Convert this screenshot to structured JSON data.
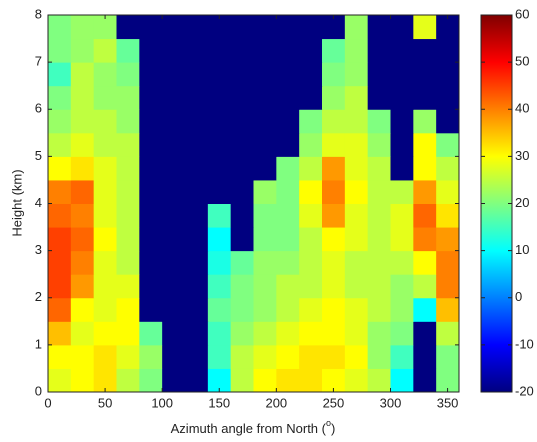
{
  "chart_data": {
    "type": "heatmap",
    "x": [
      10,
      30,
      50,
      70,
      90,
      110,
      130,
      150,
      170,
      190,
      210,
      230,
      250,
      270,
      290,
      310,
      330,
      350
    ],
    "y": [
      0.25,
      0.75,
      1.25,
      1.75,
      2.25,
      2.75,
      3.25,
      3.75,
      4.25,
      4.75,
      5.25,
      5.75,
      6.25,
      6.75,
      7.25,
      7.75
    ],
    "z": [
      [
        28,
        30,
        32,
        25,
        20,
        -20,
        -20,
        10,
        25,
        30,
        32,
        32,
        30,
        28,
        25,
        10,
        -20,
        20
      ],
      [
        30,
        30,
        32,
        28,
        22,
        -20,
        -20,
        15,
        25,
        28,
        30,
        32,
        32,
        30,
        22,
        15,
        -20,
        20
      ],
      [
        35,
        28,
        30,
        30,
        18,
        -20,
        -20,
        15,
        22,
        25,
        28,
        30,
        30,
        28,
        22,
        20,
        -20,
        25
      ],
      [
        42,
        30,
        28,
        30,
        -20,
        -20,
        -20,
        18,
        20,
        22,
        25,
        28,
        30,
        28,
        25,
        22,
        10,
        35
      ],
      [
        45,
        38,
        28,
        28,
        -20,
        -20,
        -20,
        15,
        20,
        22,
        25,
        25,
        28,
        25,
        25,
        22,
        25,
        40
      ],
      [
        45,
        40,
        28,
        25,
        -20,
        -20,
        -20,
        12,
        18,
        22,
        22,
        25,
        28,
        25,
        25,
        25,
        30,
        40
      ],
      [
        45,
        42,
        30,
        25,
        -20,
        -20,
        -20,
        10,
        -20,
        20,
        20,
        25,
        30,
        28,
        25,
        28,
        40,
        38
      ],
      [
        42,
        40,
        28,
        25,
        -20,
        -20,
        -20,
        15,
        -20,
        20,
        20,
        28,
        38,
        28,
        25,
        28,
        42,
        32
      ],
      [
        40,
        42,
        28,
        25,
        -20,
        -20,
        -20,
        -20,
        -20,
        22,
        20,
        30,
        40,
        30,
        25,
        25,
        38,
        28
      ],
      [
        30,
        32,
        28,
        25,
        -20,
        -20,
        -20,
        -20,
        -20,
        -20,
        20,
        25,
        38,
        28,
        25,
        -20,
        30,
        25
      ],
      [
        25,
        28,
        25,
        25,
        -20,
        -20,
        -20,
        -20,
        -20,
        -20,
        -20,
        22,
        28,
        28,
        22,
        -20,
        30,
        20
      ],
      [
        22,
        25,
        25,
        22,
        -20,
        -20,
        -20,
        -20,
        -20,
        -20,
        -20,
        20,
        25,
        25,
        20,
        -20,
        22,
        -20
      ],
      [
        20,
        25,
        22,
        22,
        -20,
        -20,
        -20,
        -20,
        -20,
        -20,
        -20,
        -20,
        22,
        25,
        -20,
        -20,
        -20,
        -20
      ],
      [
        15,
        25,
        22,
        20,
        -20,
        -20,
        -20,
        -20,
        -20,
        -20,
        -20,
        -20,
        20,
        22,
        -20,
        -20,
        -20,
        -20
      ],
      [
        20,
        22,
        25,
        18,
        -20,
        -20,
        -20,
        -20,
        -20,
        -20,
        -20,
        -20,
        18,
        22,
        -20,
        -20,
        -20,
        -20
      ],
      [
        20,
        22,
        22,
        -20,
        -20,
        -20,
        -20,
        -20,
        -20,
        -20,
        -20,
        -20,
        -20,
        22,
        -20,
        -20,
        28,
        -20
      ]
    ],
    "xlim": [
      0,
      360
    ],
    "xticks": [
      0,
      50,
      100,
      150,
      200,
      250,
      300,
      350
    ],
    "ylim": [
      0,
      8
    ],
    "yticks": [
      0,
      1,
      2,
      3,
      4,
      5,
      6,
      7,
      8
    ],
    "clim": [
      -20,
      60
    ],
    "cticks": [
      -20,
      -10,
      0,
      10,
      20,
      30,
      40,
      50,
      60
    ],
    "colormap": "jet",
    "x_label": [
      "Azimuth angle from North (",
      "o",
      ")"
    ],
    "y_label": "Height (km)"
  }
}
